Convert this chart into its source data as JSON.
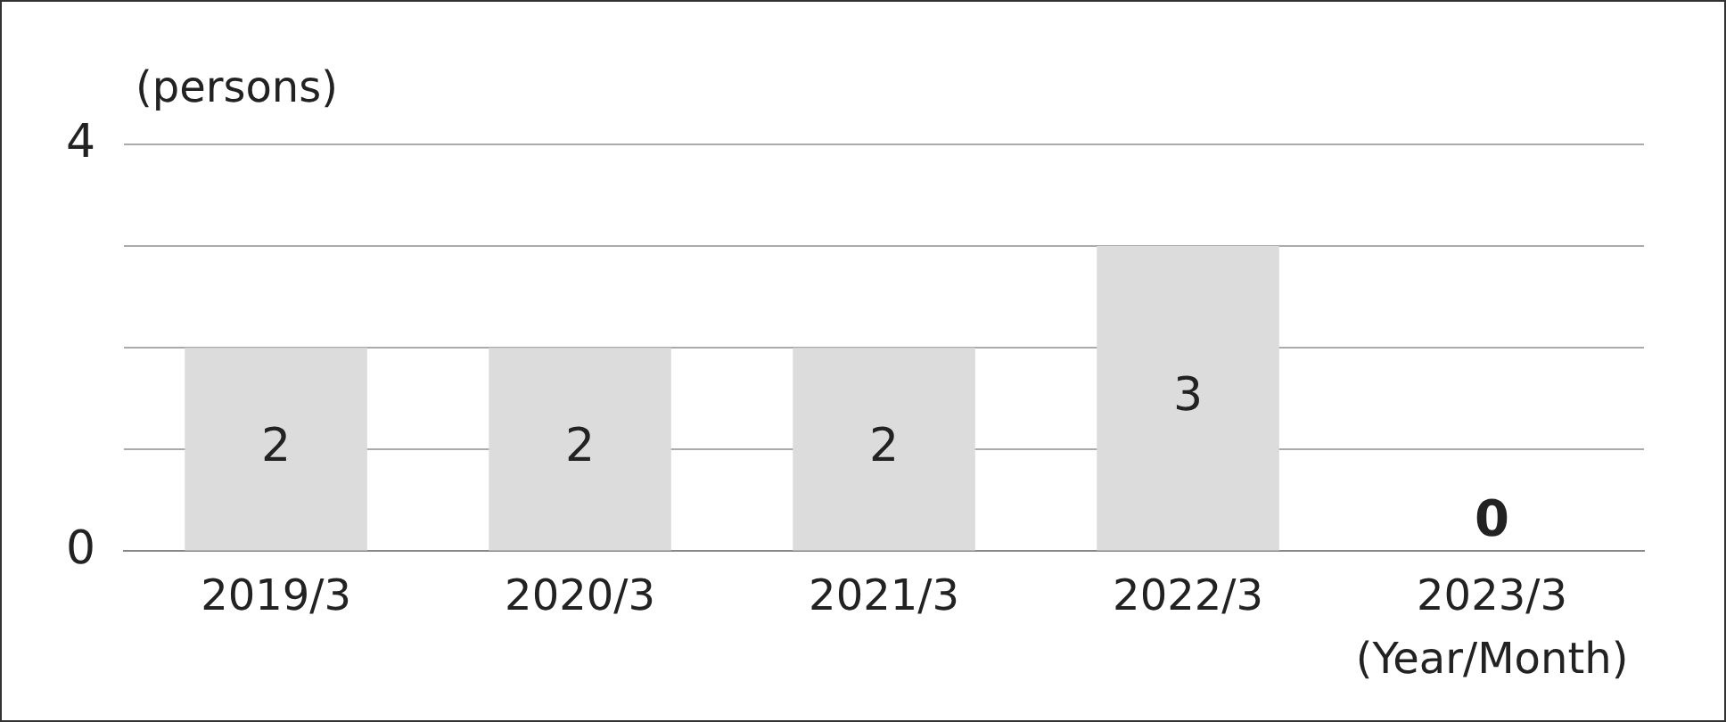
{
  "chart_data": {
    "type": "bar",
    "ylabel": "(persons)",
    "xlabel": "(Year/Month)",
    "categories": [
      "2019/3",
      "2020/3",
      "2021/3",
      "2022/3",
      "2023/3"
    ],
    "values": [
      2,
      2,
      2,
      3,
      0
    ],
    "color": "#dcdcdc",
    "ylim": [
      0,
      4
    ],
    "yticks": [
      0,
      {
        "value": 1,
        "label": null
      },
      {
        "value": 2,
        "label": null
      },
      {
        "value": 3,
        "label": null
      },
      4
    ],
    "grid": "y",
    "data_labels": true,
    "legend": false
  }
}
